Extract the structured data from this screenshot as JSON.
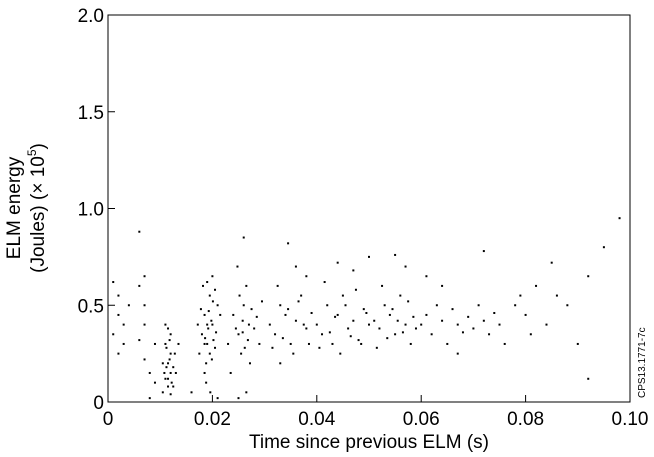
{
  "chart_data": {
    "type": "scatter",
    "title": "",
    "xlabel": "Time since previous ELM (s)",
    "ylabel": "ELM energy",
    "ylabel_line2": "(Joules) (× 10",
    "ylabel_exponent": "5",
    "ylabel_close": ")",
    "xlim": [
      0,
      0.1
    ],
    "ylim": [
      0,
      2.0
    ],
    "x_ticks": [
      "0",
      "0.02",
      "0.04",
      "0.06",
      "0.08",
      "0.10"
    ],
    "y_ticks": [
      "0",
      "0.5",
      "1.0",
      "1.5",
      "2.0"
    ],
    "grid": false,
    "legend": "none",
    "marker_color": "#000000",
    "series": [
      {
        "points": [
          [
            0.001,
            0.35
          ],
          [
            0.002,
            0.45
          ],
          [
            0.003,
            0.4
          ],
          [
            0.001,
            0.62
          ],
          [
            0.002,
            0.55
          ],
          [
            0.003,
            0.3
          ],
          [
            0.004,
            0.5
          ],
          [
            0.002,
            0.25
          ],
          [
            0.006,
            0.88
          ],
          [
            0.007,
            0.65
          ],
          [
            0.007,
            0.4
          ],
          [
            0.006,
            0.32
          ],
          [
            0.007,
            0.22
          ],
          [
            0.008,
            0.15
          ],
          [
            0.007,
            0.5
          ],
          [
            0.006,
            0.6
          ],
          [
            0.009,
            0.3
          ],
          [
            0.008,
            0.02
          ],
          [
            0.009,
            0.1
          ],
          [
            0.0105,
            0.05
          ],
          [
            0.011,
            0.12
          ],
          [
            0.0115,
            0.2
          ],
          [
            0.012,
            0.25
          ],
          [
            0.011,
            0.3
          ],
          [
            0.0125,
            0.18
          ],
          [
            0.0115,
            0.08
          ],
          [
            0.012,
            0.35
          ],
          [
            0.0108,
            0.15
          ],
          [
            0.0118,
            0.22
          ],
          [
            0.0122,
            0.1
          ],
          [
            0.0112,
            0.28
          ],
          [
            0.013,
            0.15
          ],
          [
            0.0115,
            0.38
          ],
          [
            0.012,
            0.04
          ],
          [
            0.0128,
            0.25
          ],
          [
            0.0105,
            0.2
          ],
          [
            0.0118,
            0.32
          ],
          [
            0.0125,
            0.08
          ],
          [
            0.0112,
            0.18
          ],
          [
            0.011,
            0.4
          ],
          [
            0.0135,
            0.3
          ],
          [
            0.012,
            0.15
          ],
          [
            0.0115,
            0.12
          ],
          [
            0.016,
            0.05
          ],
          [
            0.0175,
            0.25
          ],
          [
            0.018,
            0.35
          ],
          [
            0.0185,
            0.45
          ],
          [
            0.019,
            0.3
          ],
          [
            0.0195,
            0.55
          ],
          [
            0.02,
            0.4
          ],
          [
            0.0205,
            0.28
          ],
          [
            0.021,
            0.5
          ],
          [
            0.0182,
            0.6
          ],
          [
            0.0188,
            0.2
          ],
          [
            0.0192,
            0.38
          ],
          [
            0.0198,
            0.42
          ],
          [
            0.0202,
            0.32
          ],
          [
            0.0178,
            0.48
          ],
          [
            0.0185,
            0.15
          ],
          [
            0.019,
            0.62
          ],
          [
            0.0195,
            0.25
          ],
          [
            0.0201,
            0.52
          ],
          [
            0.0207,
            0.36
          ],
          [
            0.0186,
            0.33
          ],
          [
            0.0193,
            0.47
          ],
          [
            0.0199,
            0.22
          ],
          [
            0.02,
            0.65
          ],
          [
            0.0188,
            0.1
          ],
          [
            0.0196,
            0.05
          ],
          [
            0.021,
            0.02
          ],
          [
            0.0172,
            0.4
          ],
          [
            0.0215,
            0.45
          ],
          [
            0.0205,
            0.58
          ],
          [
            0.019,
            0.4
          ],
          [
            0.0185,
            0.3
          ],
          [
            0.023,
            0.3
          ],
          [
            0.024,
            0.45
          ],
          [
            0.025,
            0.35
          ],
          [
            0.026,
            0.5
          ],
          [
            0.027,
            0.4
          ],
          [
            0.0255,
            0.25
          ],
          [
            0.0265,
            0.6
          ],
          [
            0.0245,
            0.38
          ],
          [
            0.0258,
            0.42
          ],
          [
            0.0268,
            0.32
          ],
          [
            0.0275,
            0.48
          ],
          [
            0.0252,
            0.55
          ],
          [
            0.0262,
            0.28
          ],
          [
            0.026,
            0.85
          ],
          [
            0.0248,
            0.7
          ],
          [
            0.0272,
            0.2
          ],
          [
            0.0265,
            0.05
          ],
          [
            0.025,
            0.02
          ],
          [
            0.0235,
            0.15
          ],
          [
            0.028,
            0.38
          ],
          [
            0.0285,
            0.44
          ],
          [
            0.029,
            0.3
          ],
          [
            0.0295,
            0.52
          ],
          [
            0.0258,
            0.36
          ],
          [
            0.031,
            0.4
          ],
          [
            0.032,
            0.35
          ],
          [
            0.033,
            0.5
          ],
          [
            0.034,
            0.45
          ],
          [
            0.035,
            0.3
          ],
          [
            0.036,
            0.42
          ],
          [
            0.037,
            0.55
          ],
          [
            0.038,
            0.38
          ],
          [
            0.0315,
            0.28
          ],
          [
            0.0325,
            0.6
          ],
          [
            0.0335,
            0.33
          ],
          [
            0.0345,
            0.48
          ],
          [
            0.0355,
            0.25
          ],
          [
            0.0365,
            0.52
          ],
          [
            0.0375,
            0.4
          ],
          [
            0.0385,
            0.3
          ],
          [
            0.0345,
            0.82
          ],
          [
            0.036,
            0.7
          ],
          [
            0.038,
            0.65
          ],
          [
            0.033,
            0.2
          ],
          [
            0.039,
            0.46
          ],
          [
            0.04,
            0.4
          ],
          [
            0.041,
            0.35
          ],
          [
            0.042,
            0.5
          ],
          [
            0.043,
            0.3
          ],
          [
            0.044,
            0.45
          ],
          [
            0.045,
            0.55
          ],
          [
            0.046,
            0.38
          ],
          [
            0.047,
            0.42
          ],
          [
            0.048,
            0.32
          ],
          [
            0.049,
            0.48
          ],
          [
            0.05,
            0.4
          ],
          [
            0.0405,
            0.28
          ],
          [
            0.0415,
            0.62
          ],
          [
            0.0425,
            0.36
          ],
          [
            0.0435,
            0.44
          ],
          [
            0.0445,
            0.25
          ],
          [
            0.0455,
            0.5
          ],
          [
            0.0465,
            0.34
          ],
          [
            0.0475,
            0.58
          ],
          [
            0.0485,
            0.3
          ],
          [
            0.0495,
            0.46
          ],
          [
            0.044,
            0.72
          ],
          [
            0.047,
            0.68
          ],
          [
            0.05,
            0.75
          ],
          [
            0.051,
            0.42
          ],
          [
            0.052,
            0.38
          ],
          [
            0.053,
            0.5
          ],
          [
            0.054,
            0.45
          ],
          [
            0.055,
            0.35
          ],
          [
            0.056,
            0.55
          ],
          [
            0.057,
            0.4
          ],
          [
            0.058,
            0.3
          ],
          [
            0.0515,
            0.28
          ],
          [
            0.0525,
            0.6
          ],
          [
            0.0535,
            0.33
          ],
          [
            0.0545,
            0.48
          ],
          [
            0.0555,
            0.42
          ],
          [
            0.0565,
            0.36
          ],
          [
            0.0575,
            0.52
          ],
          [
            0.0585,
            0.44
          ],
          [
            0.055,
            0.76
          ],
          [
            0.057,
            0.7
          ],
          [
            0.059,
            0.38
          ],
          [
            0.06,
            0.4
          ],
          [
            0.061,
            0.45
          ],
          [
            0.062,
            0.35
          ],
          [
            0.063,
            0.5
          ],
          [
            0.064,
            0.42
          ],
          [
            0.065,
            0.3
          ],
          [
            0.066,
            0.48
          ],
          [
            0.067,
            0.4
          ],
          [
            0.068,
            0.36
          ],
          [
            0.069,
            0.44
          ],
          [
            0.07,
            0.38
          ],
          [
            0.061,
            0.65
          ],
          [
            0.064,
            0.6
          ],
          [
            0.067,
            0.25
          ],
          [
            0.071,
            0.5
          ],
          [
            0.072,
            0.42
          ],
          [
            0.073,
            0.35
          ],
          [
            0.074,
            0.46
          ],
          [
            0.075,
            0.4
          ],
          [
            0.076,
            0.3
          ],
          [
            0.072,
            0.78
          ],
          [
            0.078,
            0.5
          ],
          [
            0.079,
            0.55
          ],
          [
            0.08,
            0.45
          ],
          [
            0.082,
            0.6
          ],
          [
            0.084,
            0.4
          ],
          [
            0.086,
            0.55
          ],
          [
            0.088,
            0.5
          ],
          [
            0.09,
            0.3
          ],
          [
            0.081,
            0.35
          ],
          [
            0.085,
            0.72
          ],
          [
            0.092,
            0.65
          ],
          [
            0.092,
            0.12
          ],
          [
            0.095,
            0.8
          ],
          [
            0.098,
            0.95
          ]
        ]
      }
    ],
    "side_tag": "CPS13.1771-7c"
  }
}
